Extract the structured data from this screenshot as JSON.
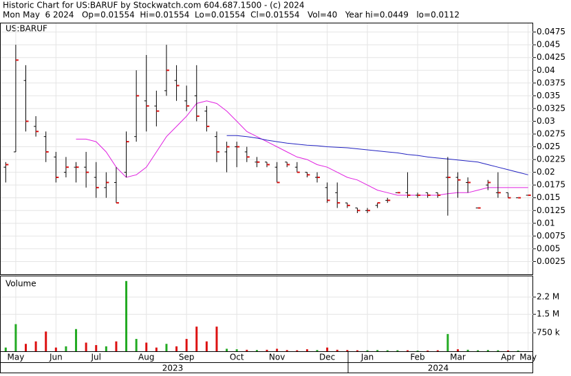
{
  "chart_data": {
    "type": "ohlc",
    "title": "Historic Chart for US:BARUF by Stockwatch.com 604.687.1500 - (c) 2024",
    "subtitle": "Mon May  6 2024   Op=0.01554  Hi=0.01554  Lo=0.01554  Cl=0.01554   Vol=40   Year hi=0.0449   lo=0.0112",
    "symbol": "US:BARUF",
    "volume_label": "Volume",
    "years": [
      "2023",
      "2024"
    ],
    "categories": [
      null,
      "May",
      null,
      null,
      null,
      "Jun",
      null,
      null,
      null,
      "Jul",
      null,
      null,
      null,
      null,
      "Aug",
      null,
      null,
      null,
      "Sep",
      null,
      null,
      null,
      null,
      "Oct",
      null,
      null,
      null,
      "Nov",
      null,
      null,
      null,
      null,
      "Dec",
      null,
      null,
      null,
      "Jan",
      null,
      null,
      null,
      null,
      "Feb",
      null,
      null,
      null,
      "Mar",
      null,
      null,
      null,
      null,
      "Apr",
      null,
      "May"
    ],
    "open": [
      0.021,
      0.024,
      0.038,
      0.029,
      0.027,
      0.023,
      0.02,
      0.021,
      0.021,
      0.019,
      0.017,
      0.018,
      0.02,
      0.027,
      0.034,
      0.033,
      0.036,
      0.038,
      0.034,
      0.035,
      0.032,
      0.027,
      0.024,
      0.025,
      0.024,
      0.022,
      0.022,
      0.021,
      0.022,
      0.021,
      0.02,
      0.019,
      0.017,
      0.016,
      0.014,
      0.013,
      0.0125,
      0.0135,
      0.0145,
      0.016,
      0.016,
      0.0155,
      0.016,
      0.016,
      0.019,
      0.019,
      0.018,
      0.013,
      0.0175,
      0.016,
      0.016,
      0.015,
      0.0155
    ],
    "high": [
      0.022,
      0.045,
      0.041,
      0.031,
      0.028,
      0.024,
      0.023,
      0.022,
      0.024,
      0.022,
      0.02,
      0.021,
      0.028,
      0.04,
      0.043,
      0.036,
      0.045,
      0.041,
      0.037,
      0.041,
      0.033,
      0.028,
      0.026,
      0.026,
      0.025,
      0.023,
      0.022,
      0.022,
      0.022,
      0.022,
      0.02,
      0.02,
      0.018,
      0.018,
      0.014,
      0.013,
      0.013,
      0.014,
      0.015,
      0.016,
      0.02,
      0.016,
      0.016,
      0.016,
      0.023,
      0.02,
      0.019,
      0.013,
      0.0185,
      0.02,
      0.016,
      0.015,
      0.0155
    ],
    "low": [
      0.018,
      0.024,
      0.028,
      0.027,
      0.022,
      0.018,
      0.019,
      0.018,
      0.017,
      0.015,
      0.015,
      0.014,
      0.019,
      0.026,
      0.028,
      0.029,
      0.035,
      0.034,
      0.032,
      0.03,
      0.028,
      0.022,
      0.02,
      0.021,
      0.022,
      0.021,
      0.021,
      0.018,
      0.021,
      0.02,
      0.019,
      0.018,
      0.014,
      0.013,
      0.013,
      0.012,
      0.012,
      0.013,
      0.014,
      0.016,
      0.015,
      0.015,
      0.015,
      0.015,
      0.0115,
      0.015,
      0.016,
      0.013,
      0.0165,
      0.015,
      0.015,
      0.015,
      0.0155
    ],
    "close": [
      0.0215,
      0.042,
      0.03,
      0.028,
      0.024,
      0.019,
      0.021,
      0.021,
      0.02,
      0.017,
      0.018,
      0.014,
      0.026,
      0.035,
      0.033,
      0.032,
      0.04,
      0.037,
      0.033,
      0.031,
      0.029,
      0.024,
      0.025,
      0.025,
      0.023,
      0.022,
      0.0215,
      0.018,
      0.0215,
      0.02,
      0.0195,
      0.019,
      0.0145,
      0.014,
      0.0135,
      0.0125,
      0.0125,
      0.014,
      0.0145,
      0.016,
      0.0155,
      0.0155,
      0.0155,
      0.0155,
      0.019,
      0.0185,
      0.018,
      0.013,
      0.018,
      0.016,
      0.015,
      0.015,
      0.0155
    ],
    "volume": [
      150000,
      1100000,
      300000,
      400000,
      800000,
      150000,
      200000,
      900000,
      350000,
      250000,
      200000,
      400000,
      2850000,
      500000,
      350000,
      150000,
      300000,
      200000,
      500000,
      1000000,
      400000,
      1000000,
      100000,
      80000,
      60000,
      50000,
      60000,
      100000,
      50000,
      40000,
      80000,
      50000,
      150000,
      60000,
      50000,
      40000,
      40000,
      50000,
      40000,
      40000,
      40000,
      30000,
      30000,
      40000,
      700000,
      80000,
      60000,
      40000,
      50000,
      40000,
      30000,
      30000,
      40
    ],
    "moving_averages": [
      {
        "color": "#e020e0",
        "values": [
          null,
          null,
          null,
          null,
          null,
          null,
          null,
          0.0265,
          0.0265,
          0.026,
          0.024,
          0.021,
          0.019,
          0.0195,
          0.021,
          0.024,
          0.027,
          0.029,
          0.031,
          0.0335,
          0.034,
          0.0335,
          0.032,
          0.03,
          0.028,
          0.027,
          0.026,
          0.025,
          0.024,
          0.023,
          0.0225,
          0.0215,
          0.021,
          0.02,
          0.019,
          0.0185,
          0.0175,
          0.0165,
          0.016,
          0.0155,
          0.0155,
          0.0155,
          0.0155,
          0.0155,
          0.0158,
          0.016,
          0.016,
          0.0165,
          0.017,
          0.017,
          0.017,
          0.017,
          0.017
        ]
      },
      {
        "color": "#2020c0",
        "values": [
          null,
          null,
          null,
          null,
          null,
          null,
          null,
          null,
          null,
          null,
          null,
          null,
          null,
          null,
          null,
          null,
          null,
          null,
          null,
          null,
          null,
          null,
          0.0272,
          0.0272,
          0.027,
          0.0267,
          0.0263,
          0.026,
          0.0257,
          0.0255,
          0.0253,
          0.0252,
          0.025,
          0.0249,
          0.0248,
          0.0246,
          0.0244,
          0.0242,
          0.024,
          0.0238,
          0.0235,
          0.0233,
          0.023,
          0.0228,
          0.0226,
          0.0224,
          0.0222,
          0.022,
          0.0215,
          0.021,
          0.0205,
          0.02,
          0.0195
        ]
      }
    ],
    "up_color": "#22aa22",
    "down_color": "#dd1111",
    "ylim": [
      0,
      0.0492
    ],
    "yticks": [
      0.0025,
      0.005,
      0.0075,
      0.01,
      0.0125,
      0.015,
      0.0175,
      0.02,
      0.0225,
      0.025,
      0.0275,
      0.03,
      0.0325,
      0.035,
      0.0375,
      0.04,
      0.0425,
      0.045,
      0.0475
    ],
    "y2lim": [
      0,
      3040000
    ],
    "y2ticks": [
      {
        "value": 750000,
        "label": "750 k"
      },
      {
        "value": 1500000,
        "label": "1.5 M"
      },
      {
        "value": 2200000,
        "label": "2.2 M"
      }
    ],
    "grid": true
  }
}
